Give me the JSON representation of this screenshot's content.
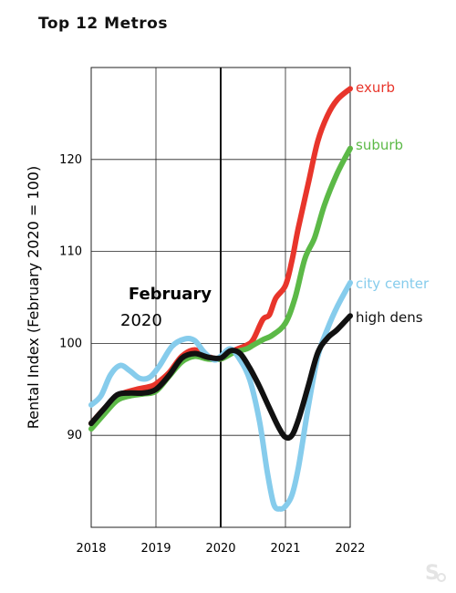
{
  "title": "Top 12 Metros",
  "chart_data": {
    "type": "line",
    "title": "Top 12 Metros",
    "xlabel": "",
    "ylabel": "Rental Index (February 2020 = 100)",
    "xlim": [
      2018,
      2022
    ],
    "ylim": [
      80,
      130
    ],
    "xticks": [
      2018,
      2019,
      2020,
      2021,
      2022
    ],
    "yticks": [
      90,
      100,
      110,
      120
    ],
    "grid": true,
    "annotation": {
      "line1": "February",
      "line2": "2020",
      "x": 2020
    },
    "series": [
      {
        "name": "exurb",
        "color": "#e8352b",
        "x": [
          2018,
          2018.2,
          2018.4,
          2018.5,
          2018.7,
          2018.9,
          2019.0,
          2019.2,
          2019.4,
          2019.6,
          2019.8,
          2020.0,
          2020.2,
          2020.4,
          2020.5,
          2020.65,
          2020.75,
          2020.85,
          2021.0,
          2021.1,
          2021.2,
          2021.35,
          2021.5,
          2021.65,
          2021.8,
          2022.0
        ],
        "values": [
          91.3,
          92.9,
          94.2,
          94.6,
          95.0,
          95.3,
          95.6,
          96.8,
          98.6,
          99.3,
          98.6,
          98.3,
          99.2,
          99.8,
          100.4,
          102.6,
          103.1,
          104.9,
          106.3,
          109.0,
          112.6,
          117.3,
          122.0,
          124.8,
          126.5,
          127.7
        ]
      },
      {
        "name": "suburb",
        "color": "#5cb947",
        "x": [
          2018,
          2018.2,
          2018.4,
          2018.6,
          2018.8,
          2019.0,
          2019.2,
          2019.4,
          2019.6,
          2019.8,
          2020.0,
          2020.2,
          2020.4,
          2020.5,
          2020.65,
          2020.8,
          2021.0,
          2021.15,
          2021.3,
          2021.45,
          2021.6,
          2021.8,
          2022.0
        ],
        "values": [
          90.7,
          92.3,
          93.8,
          94.3,
          94.5,
          94.8,
          96.4,
          98.0,
          98.6,
          98.3,
          98.3,
          99.0,
          99.4,
          99.8,
          100.4,
          100.9,
          102.2,
          105.0,
          109.2,
          111.5,
          115.0,
          118.5,
          121.2
        ]
      },
      {
        "name": "city center",
        "color": "#86ccec",
        "x": [
          2018,
          2018.15,
          2018.3,
          2018.45,
          2018.6,
          2018.75,
          2018.9,
          2019.05,
          2019.25,
          2019.45,
          2019.6,
          2019.75,
          2019.9,
          2020.0,
          2020.15,
          2020.3,
          2020.45,
          2020.6,
          2020.72,
          2020.82,
          2020.92,
          2021.0,
          2021.1,
          2021.2,
          2021.35,
          2021.5,
          2021.65,
          2021.8,
          2022.0
        ],
        "values": [
          93.3,
          94.3,
          96.6,
          97.6,
          97.0,
          96.2,
          96.3,
          97.5,
          99.7,
          100.5,
          100.3,
          99.0,
          98.2,
          98.6,
          99.4,
          98.2,
          96.0,
          91.5,
          86.0,
          82.5,
          82.0,
          82.3,
          83.5,
          86.5,
          93.0,
          98.6,
          101.6,
          104.0,
          106.6
        ]
      },
      {
        "name": "high dens",
        "color": "#111111",
        "x": [
          2018,
          2018.2,
          2018.4,
          2018.6,
          2018.8,
          2019.0,
          2019.2,
          2019.4,
          2019.6,
          2019.8,
          2020.0,
          2020.15,
          2020.3,
          2020.45,
          2020.6,
          2020.75,
          2020.9,
          2021.0,
          2021.1,
          2021.2,
          2021.35,
          2021.5,
          2021.65,
          2021.8,
          2022.0
        ],
        "values": [
          91.3,
          92.9,
          94.4,
          94.6,
          94.6,
          95.0,
          96.5,
          98.4,
          98.9,
          98.5,
          98.4,
          99.2,
          98.9,
          97.3,
          95.3,
          93.0,
          90.8,
          89.8,
          90.0,
          91.7,
          95.3,
          99.0,
          100.6,
          101.5,
          103.0
        ]
      }
    ]
  }
}
